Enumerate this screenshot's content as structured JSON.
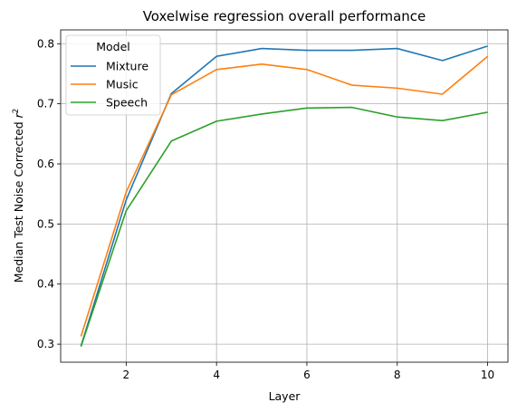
{
  "chart_data": {
    "type": "line",
    "title": "Voxelwise regression overall performance",
    "xlabel": "Layer",
    "ylabel_main": "Median Test Noise Corrected ",
    "ylabel_symbol": "r",
    "ylabel_superscript": "2",
    "xlim": [
      0.55,
      10.45
    ],
    "ylim": [
      0.27,
      0.823
    ],
    "xticks": [
      2,
      4,
      6,
      8,
      10
    ],
    "xtick_labels": [
      "2",
      "4",
      "6",
      "8",
      "10"
    ],
    "yticks": [
      0.3,
      0.4,
      0.5,
      0.6,
      0.7,
      0.8
    ],
    "ytick_labels": [
      "0.3",
      "0.4",
      "0.5",
      "0.6",
      "0.7",
      "0.8"
    ],
    "grid": true,
    "legend": {
      "title": "Model",
      "placement": "top-left"
    },
    "x": [
      1,
      2,
      3,
      4,
      5,
      6,
      7,
      8,
      9,
      10
    ],
    "series": [
      {
        "name": "Mixture",
        "color": "#1f77b4",
        "values": [
          0.297,
          0.54,
          0.717,
          0.779,
          0.792,
          0.789,
          0.789,
          0.792,
          0.772,
          0.796
        ]
      },
      {
        "name": "Music",
        "color": "#ff7f0e",
        "values": [
          0.313,
          0.553,
          0.715,
          0.757,
          0.766,
          0.757,
          0.731,
          0.726,
          0.716,
          0.779
        ]
      },
      {
        "name": "Speech",
        "color": "#2ca02c",
        "values": [
          0.296,
          0.522,
          0.638,
          0.671,
          0.683,
          0.693,
          0.694,
          0.678,
          0.672,
          0.686
        ]
      }
    ]
  }
}
